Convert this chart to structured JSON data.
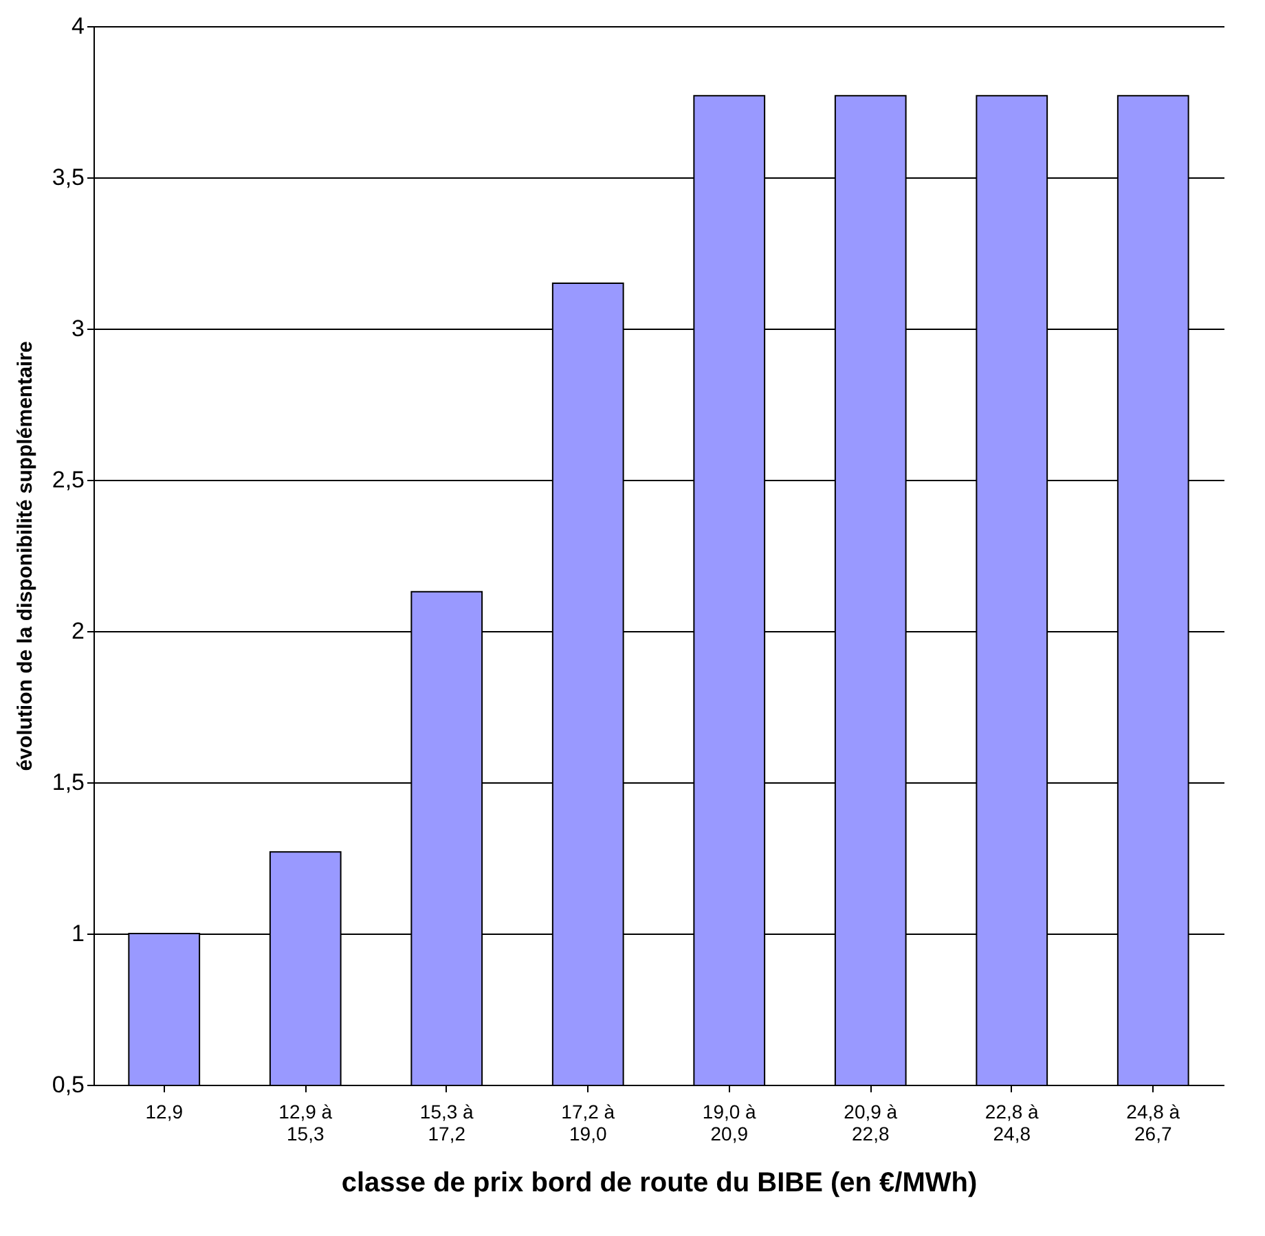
{
  "chart_data": {
    "type": "bar",
    "xlabel": "classe de prix bord de route du BIBE (en €/MWh)",
    "ylabel": "évolution de la disponibilité supplémentaire",
    "categories": [
      "12,9",
      "12,9 à\n15,3",
      "15,3 à\n17,2",
      "17,2 à\n19,0",
      "19,0 à\n20,9",
      "20,9 à\n22,8",
      "22,8 à\n24,8",
      "24,8 à\n26,7"
    ],
    "values": [
      1.0,
      1.27,
      2.13,
      3.15,
      3.77,
      3.77,
      3.77,
      3.77
    ],
    "color": "#9999ff",
    "ylim": [
      0.5,
      4
    ],
    "yticks": [
      {
        "value": 0.5,
        "label": "0,5"
      },
      {
        "value": 1,
        "label": "1"
      },
      {
        "value": 1.5,
        "label": "1,5"
      },
      {
        "value": 2,
        "label": "2"
      },
      {
        "value": 2.5,
        "label": "2,5"
      },
      {
        "value": 3,
        "label": "3"
      },
      {
        "value": 3.5,
        "label": "3,5"
      },
      {
        "value": 4,
        "label": "4"
      }
    ],
    "grid": "y"
  }
}
